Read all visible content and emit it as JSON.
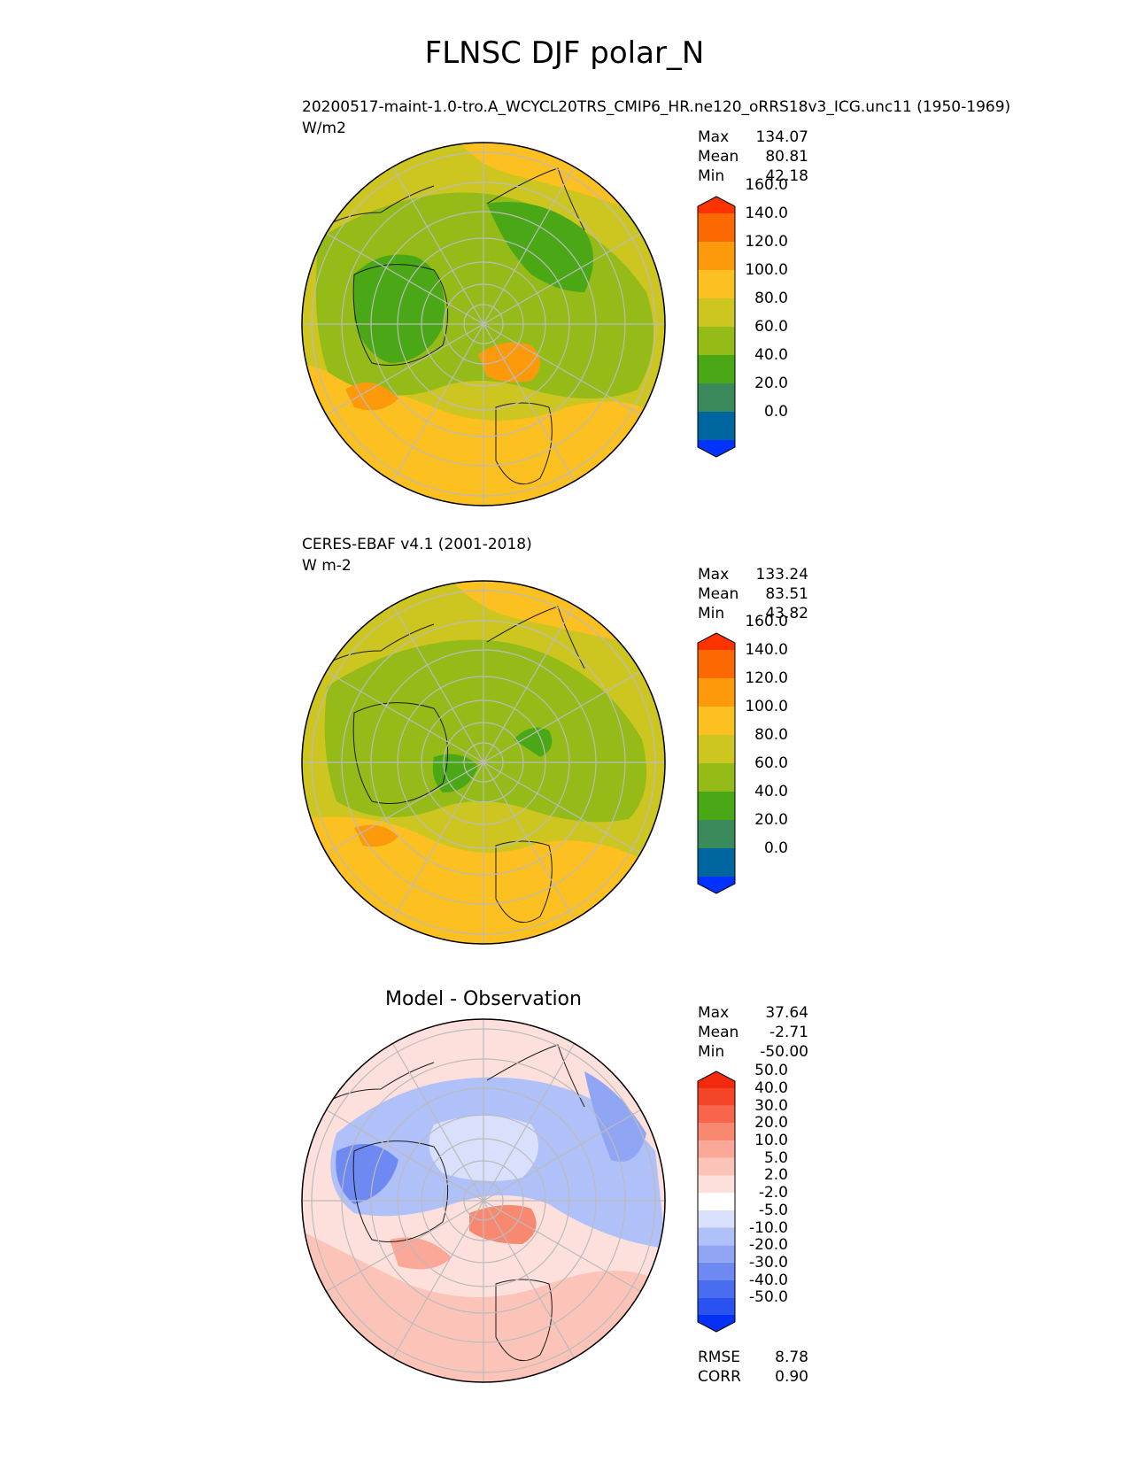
{
  "title": "FLNSC DJF polar_N",
  "panels": [
    {
      "id": "test",
      "title_line1": "20200517-maint-1.0-tro.A_WCYCL20TRS_CMIP6_HR.ne120_oRRS18v3_ICG.unc11 (1950-1969)",
      "title_line2": "W/m2",
      "stats": [
        {
          "label": "Max",
          "value": "134.07"
        },
        {
          "label": "Mean",
          "value": "80.81"
        },
        {
          "label": "Min",
          "value": "42.18"
        }
      ],
      "colorbar": {
        "colors": [
          "#0033ff",
          "#0066a0",
          "#3a8a5c",
          "#4aa816",
          "#94bb17",
          "#cdc620",
          "#fcc021",
          "#fc9a0c",
          "#fc6900",
          "#ff3300"
        ],
        "labels": [
          "0.0",
          "20.0",
          "40.0",
          "60.0",
          "80.0",
          "100.0",
          "120.0",
          "140.0",
          "160.0"
        ]
      }
    },
    {
      "id": "reference",
      "title_line1": "CERES-EBAF v4.1 (2001-2018)",
      "title_line2": "W m-2",
      "stats": [
        {
          "label": "Max",
          "value": "133.24"
        },
        {
          "label": "Mean",
          "value": "83.51"
        },
        {
          "label": "Min",
          "value": "43.82"
        }
      ],
      "colorbar": {
        "colors": [
          "#0033ff",
          "#0066a0",
          "#3a8a5c",
          "#4aa816",
          "#94bb17",
          "#cdc620",
          "#fcc021",
          "#fc9a0c",
          "#fc6900",
          "#ff3300"
        ],
        "labels": [
          "0.0",
          "20.0",
          "40.0",
          "60.0",
          "80.0",
          "100.0",
          "120.0",
          "140.0",
          "160.0"
        ]
      }
    },
    {
      "id": "difference",
      "title_center": "Model - Observation",
      "stats": [
        {
          "label": "Max",
          "value": "37.64"
        },
        {
          "label": "Mean",
          "value": "-2.71"
        },
        {
          "label": "Min",
          "value": "-50.00"
        }
      ],
      "metrics": [
        {
          "label": "RMSE",
          "value": "8.78"
        },
        {
          "label": "CORR",
          "value": "0.90"
        }
      ],
      "colorbar": {
        "colors": [
          "#0530f5",
          "#2a52f0",
          "#4a6cf0",
          "#6e8af2",
          "#90a6f5",
          "#b0c0f8",
          "#d8e0fb",
          "#ffffff",
          "#fde0db",
          "#fcc4b9",
          "#fba898",
          "#f98870",
          "#f7664c",
          "#f54528",
          "#f42a10"
        ],
        "labels": [
          "-50.0",
          "-40.0",
          "-30.0",
          "-20.0",
          "-10.0",
          "-5.0",
          "-2.0",
          "2.0",
          "5.0",
          "10.0",
          "20.0",
          "30.0",
          "40.0",
          "50.0"
        ]
      }
    }
  ]
}
